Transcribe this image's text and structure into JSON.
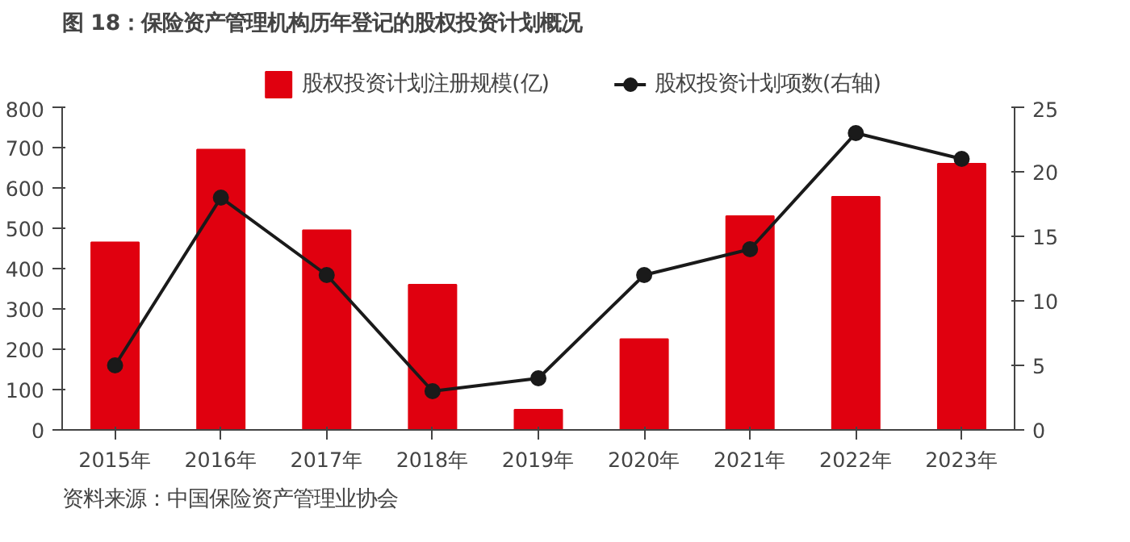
{
  "chart_data": {
    "type": "bar",
    "title": "图 18：保险资产管理机构历年登记的股权投资计划概况",
    "categories": [
      "2015年",
      "2016年",
      "2017年",
      "2018年",
      "2019年",
      "2020年",
      "2021年",
      "2022年",
      "2023年"
    ],
    "series": [
      {
        "name": "股权投资计划注册规模(亿)",
        "color": "#e0000f",
        "values": [
          465,
          695,
          495,
          360,
          50,
          225,
          530,
          578,
          660
        ]
      },
      {
        "name": "股权投资计划项数(右轴)",
        "type": "line",
        "axis": "y2",
        "color": "#1a1a1a",
        "values": [
          5,
          18,
          12,
          3,
          4,
          12,
          14,
          23,
          21
        ]
      }
    ],
    "ylim": [
      0,
      800
    ],
    "yticks": [
      0,
      100,
      200,
      300,
      400,
      500,
      600,
      700,
      800
    ],
    "y2lim": [
      0,
      25
    ],
    "y2ticks": [
      0,
      5,
      10,
      15,
      20,
      25
    ],
    "grid": false,
    "legend": "top",
    "marker": "circle",
    "line_style": "solid",
    "annotations": [
      "资料来源：中国保险资产管理业协会"
    ]
  }
}
